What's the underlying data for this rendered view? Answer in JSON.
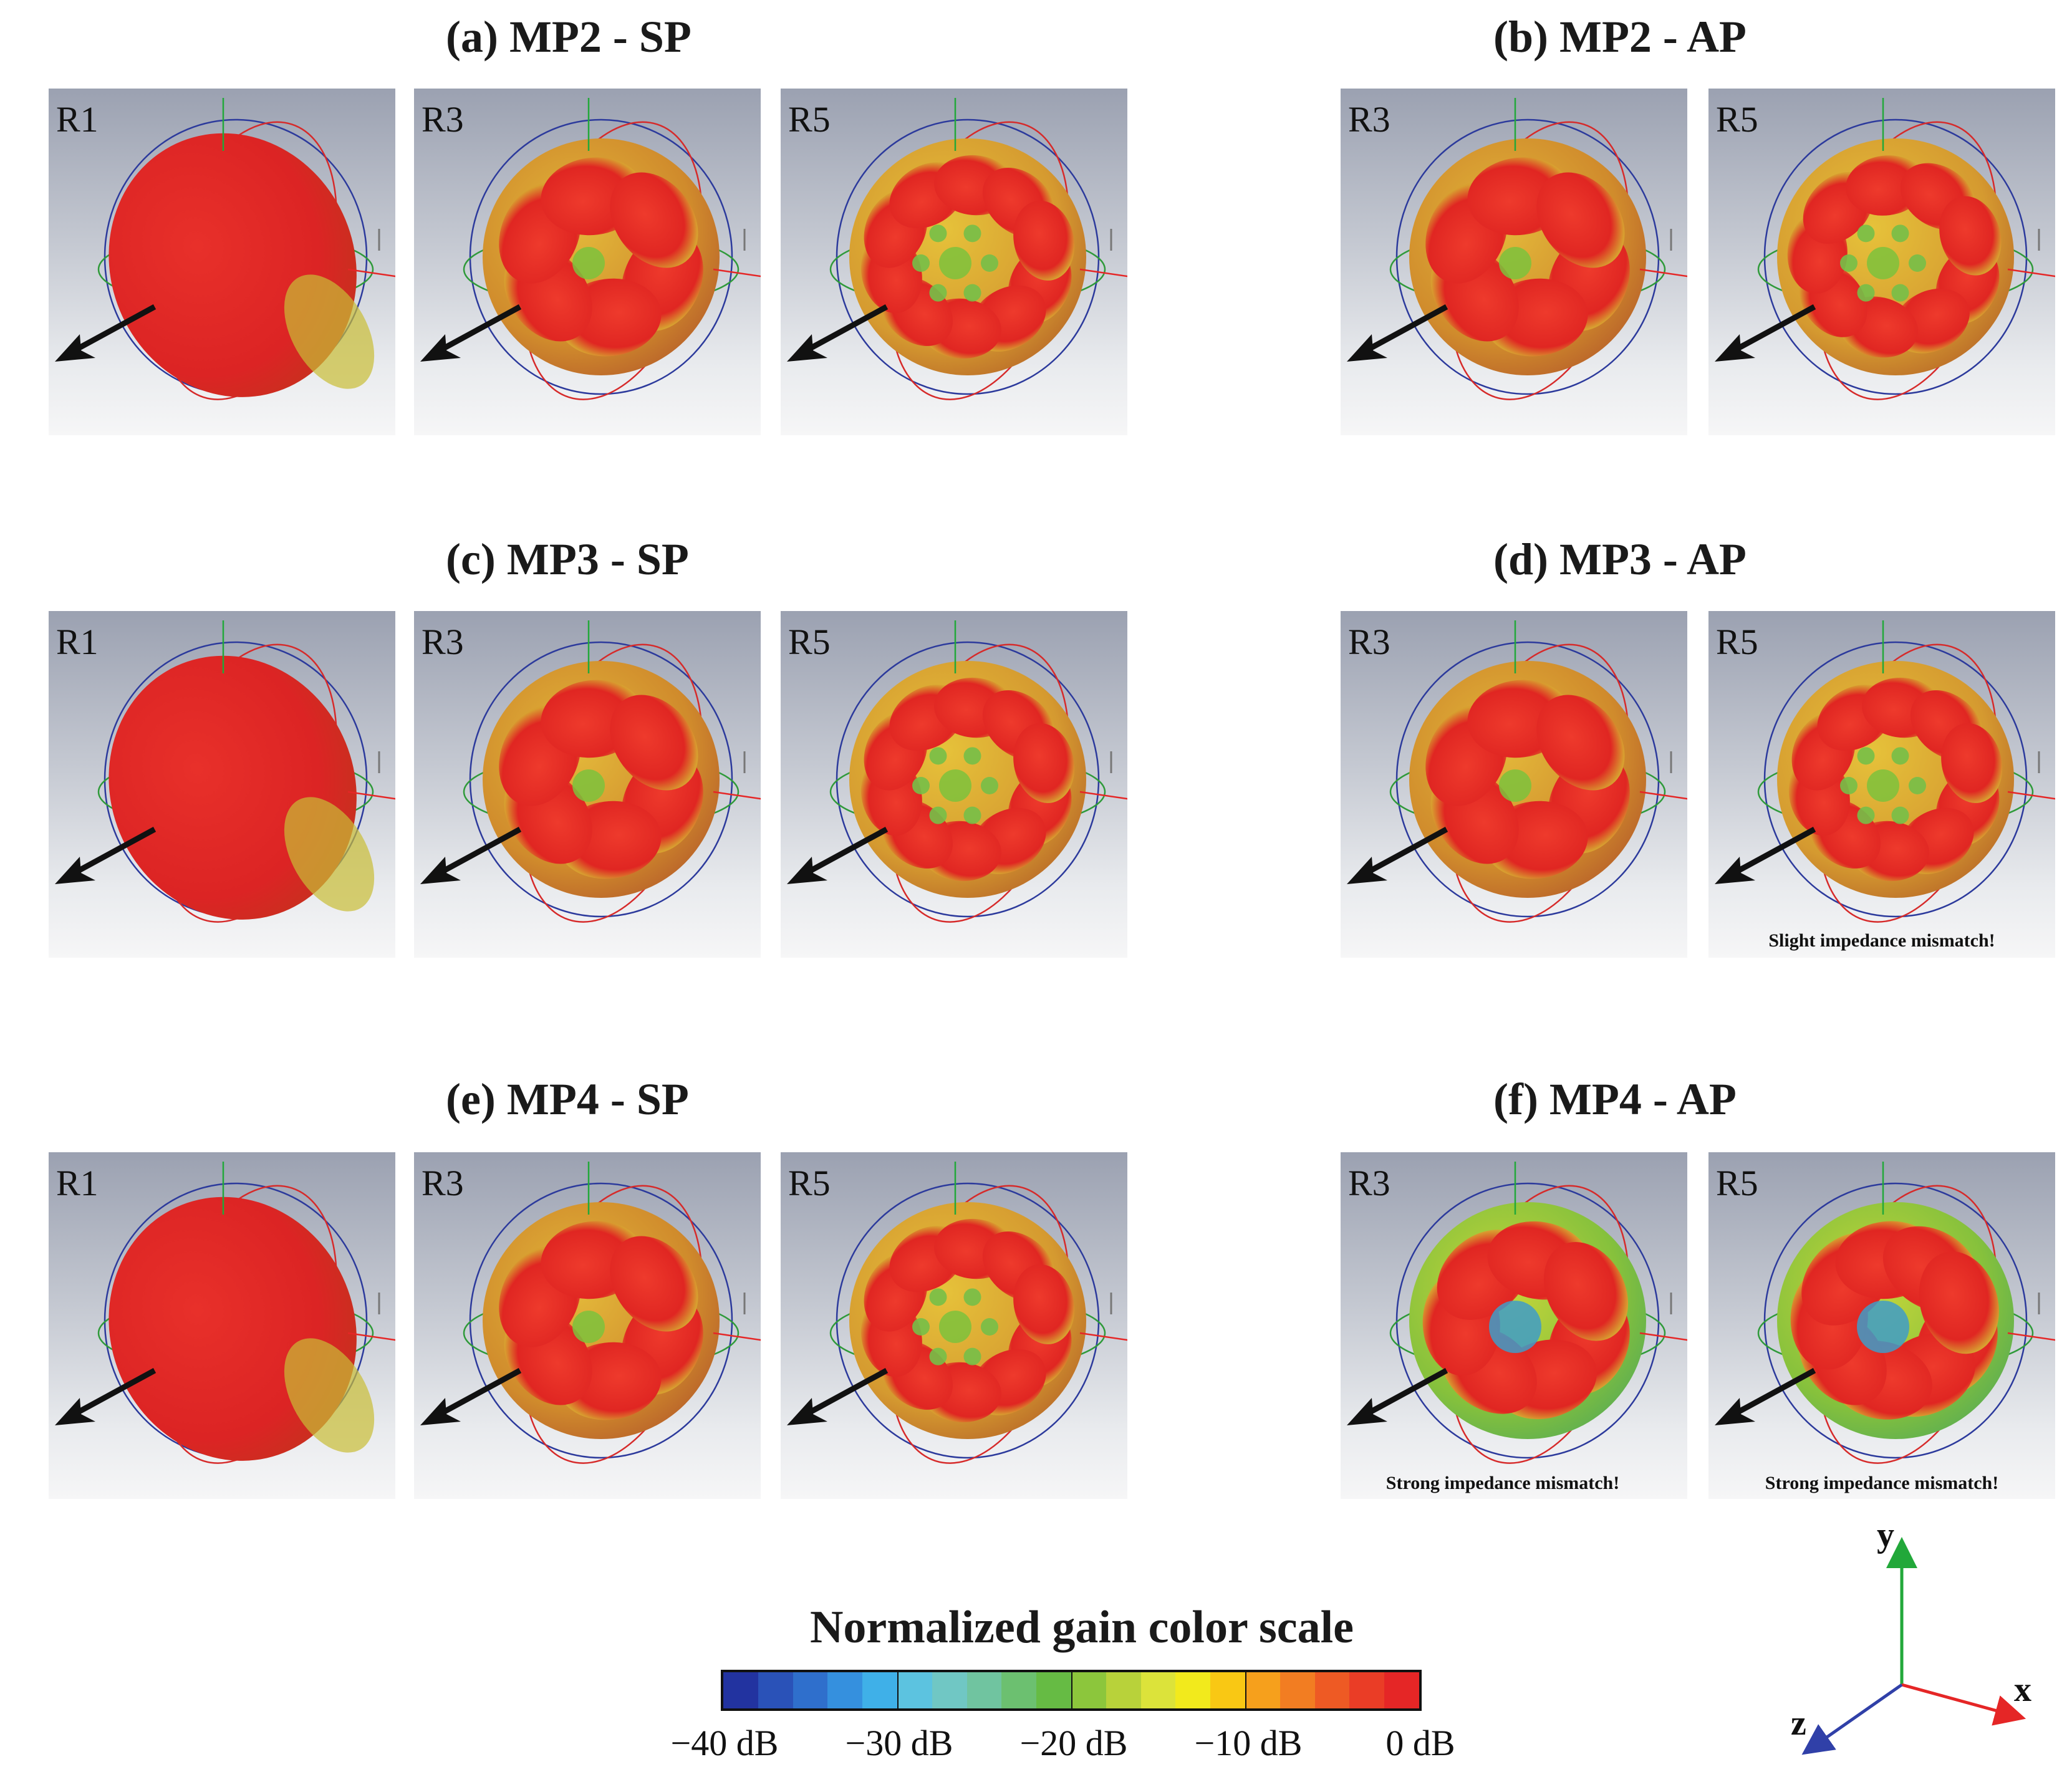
{
  "groups": [
    {
      "title": "(a) MP2 - SP",
      "note": "",
      "panels": [
        {
          "label": "R1",
          "lobes": 1,
          "variant": "r1"
        },
        {
          "label": "R3",
          "lobes": 6,
          "variant": "mid"
        },
        {
          "label": "R5",
          "lobes": 10,
          "variant": "busy"
        }
      ]
    },
    {
      "title": "(b) MP2 - AP",
      "note": "",
      "panels": [
        {
          "label": "R3",
          "lobes": 6,
          "variant": "mid"
        },
        {
          "label": "R5",
          "lobes": 9,
          "variant": "busy"
        }
      ]
    },
    {
      "title": "(c) MP3 - SP",
      "note": "",
      "panels": [
        {
          "label": "R1",
          "lobes": 1,
          "variant": "r1"
        },
        {
          "label": "R3",
          "lobes": 6,
          "variant": "mid"
        },
        {
          "label": "R5",
          "lobes": 10,
          "variant": "busy"
        }
      ]
    },
    {
      "title": "(d) MP3 - AP",
      "note": "Slight impedance mismatch!",
      "panels": [
        {
          "label": "R3",
          "lobes": 6,
          "variant": "mid"
        },
        {
          "label": "R5",
          "lobes": 10,
          "variant": "busy"
        }
      ]
    },
    {
      "title": "(e) MP4 - SP",
      "note": "",
      "panels": [
        {
          "label": "R1",
          "lobes": 1,
          "variant": "r1"
        },
        {
          "label": "R3",
          "lobes": 6,
          "variant": "mid"
        },
        {
          "label": "R5",
          "lobes": 10,
          "variant": "busy"
        }
      ]
    },
    {
      "title": "(f) MP4 - AP",
      "notes": [
        "Strong impedance mismatch!",
        "Strong impedance mismatch!"
      ],
      "panels": [
        {
          "label": "R3",
          "lobes": 7,
          "variant": "cool"
        },
        {
          "label": "R5",
          "lobes": 9,
          "variant": "cool"
        }
      ]
    }
  ],
  "color_scale": {
    "title": "Normalized gain color scale",
    "ticks": [
      "−40 dB",
      "−30 dB",
      "−20 dB",
      "−10 dB",
      "0 dB"
    ],
    "colors": [
      "#2233a0",
      "#2a52b8",
      "#2f6fcc",
      "#3590de",
      "#3fb0e8",
      "#5cc3e0",
      "#70c7c4",
      "#70c4a0",
      "#6cc070",
      "#66bb44",
      "#8cc63c",
      "#b8d23a",
      "#dce33a",
      "#f2ea1c",
      "#f9c814",
      "#f6a01c",
      "#f27d22",
      "#ee5a24",
      "#ea3d26",
      "#e52626"
    ]
  },
  "axes": {
    "x": "x",
    "y": "y",
    "z": "z",
    "x_color": "#e52626",
    "y_color": "#22a83a",
    "z_color": "#3040a8"
  }
}
